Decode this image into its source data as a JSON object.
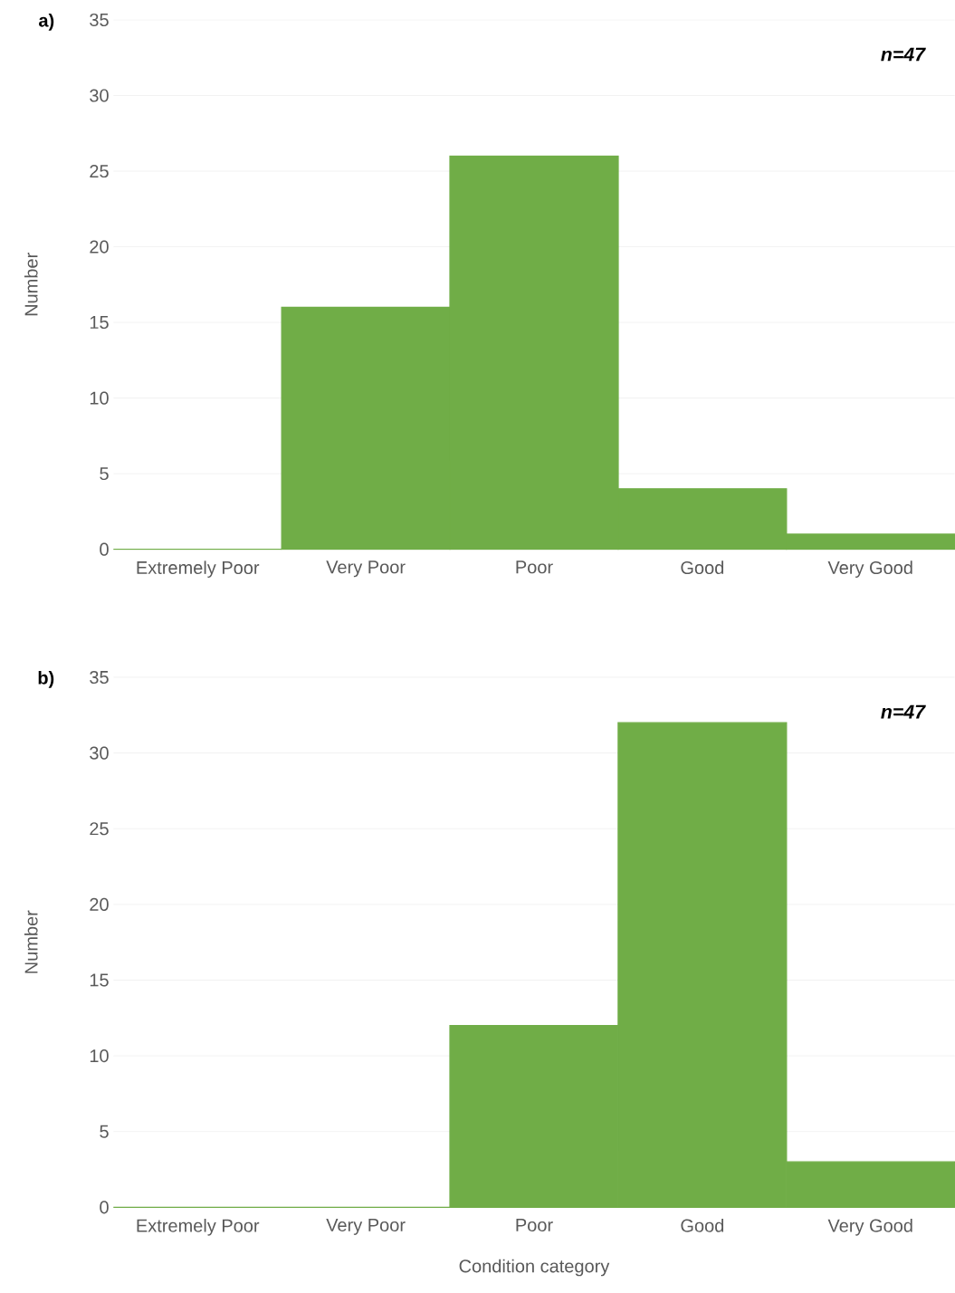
{
  "chart_data": [
    {
      "type": "bar",
      "title": "a)",
      "ylabel": "Number",
      "categories": [
        "Extremely Poor",
        "Very Poor",
        "Poor",
        "Good",
        "Very Good"
      ],
      "values": [
        0,
        16,
        26,
        4,
        1
      ],
      "color": "#70ad47",
      "ylim": [
        0,
        35
      ],
      "yticks": [
        0,
        5,
        10,
        15,
        20,
        25,
        30,
        35
      ],
      "grid": "y",
      "annotations": [
        "n=47"
      ]
    },
    {
      "type": "bar",
      "title": "b)",
      "ylabel": "Number",
      "xlabel": "Condition category",
      "categories": [
        "Extremely Poor",
        "Very Poor",
        "Poor",
        "Good",
        "Very Good"
      ],
      "values": [
        0,
        0,
        12,
        32,
        3
      ],
      "color": "#70ad47",
      "ylim": [
        0,
        35
      ],
      "yticks": [
        0,
        5,
        10,
        15,
        20,
        25,
        30,
        35
      ],
      "grid": "y",
      "annotations": [
        "n=47"
      ]
    }
  ]
}
